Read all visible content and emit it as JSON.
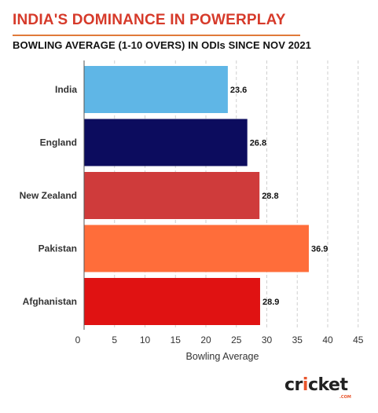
{
  "header": {
    "title": "INDIA'S DOMINANCE IN POWERPLAY",
    "subtitle": "BOWLING AVERAGE (1-10 OVERS) IN ODIs SINCE NOV 2021"
  },
  "chart_data": {
    "type": "bar",
    "orientation": "horizontal",
    "categories": [
      "India",
      "England",
      "New Zealand",
      "Pakistan",
      "Afghanistan"
    ],
    "values": [
      23.6,
      26.8,
      28.8,
      36.9,
      28.9
    ],
    "value_labels": [
      "23.6",
      "26.8",
      "28.8",
      "36.9",
      "28.9"
    ],
    "colors": [
      "#5fb6e6",
      "#0c0c5e",
      "#cf3b3b",
      "#ff6d3a",
      "#e01212"
    ],
    "xlabel": "Bowling Average",
    "xlim": [
      0,
      45
    ],
    "xticks": [
      "0",
      "5",
      "10",
      "15",
      "20",
      "25",
      "30",
      "35",
      "40",
      "45"
    ],
    "grid": "vertical-dashed"
  },
  "footer": {
    "logo_text_a": "cr",
    "logo_text_accent": "i",
    "logo_text_b": "cket",
    "logo_sub": ".COM"
  }
}
